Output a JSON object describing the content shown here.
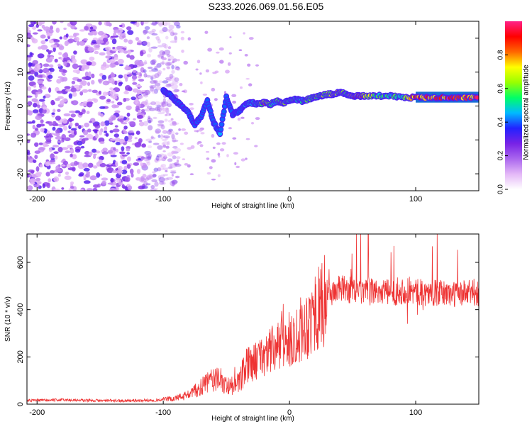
{
  "title": "S233.2026.069.01.56.E05",
  "chart_data": [
    {
      "type": "heatmap",
      "title": "S233.2026.069.01.56.E05",
      "xlabel": "Height of straight line (km)",
      "ylabel": "Frequency (Hz)",
      "xlim": [
        -208,
        150
      ],
      "ylim": [
        -25,
        25
      ],
      "xticks": [
        -200,
        -100,
        0,
        100
      ],
      "yticks": [
        -20,
        -10,
        0,
        10,
        20
      ],
      "colorbar": {
        "label": "Normalized spectral amplitude",
        "range": [
          0,
          1
        ],
        "ticks": [
          0.0,
          0.2,
          0.4,
          0.6,
          0.8
        ],
        "colormap": [
          "#ffffff",
          "#e4b8f7",
          "#aa66ee",
          "#7722e6",
          "#2222ff",
          "#00bbff",
          "#00ff66",
          "#99ff00",
          "#ffff00",
          "#ff6600",
          "#ff0000",
          "#ff2288"
        ]
      },
      "ridge": {
        "x": [
          -100,
          -95,
          -90,
          -85,
          -80,
          -75,
          -70,
          -65,
          -60,
          -55,
          -50,
          -45,
          -40,
          -35,
          -30,
          -25,
          -20,
          -15,
          -10,
          -5,
          0,
          5,
          10,
          15,
          20,
          25,
          30,
          35,
          40,
          45,
          50,
          55,
          60,
          70,
          80,
          90,
          100,
          110,
          120,
          130,
          140,
          150
        ],
        "frequency": [
          4.5,
          3.5,
          1.5,
          0.0,
          -2.0,
          -5.5,
          -3.0,
          1.5,
          -5.0,
          -8.0,
          2.5,
          -2.5,
          -1.5,
          0.5,
          1.0,
          0.5,
          1.0,
          0.5,
          1.5,
          1.0,
          1.5,
          2.0,
          1.5,
          2.0,
          2.5,
          3.0,
          3.5,
          3.5,
          4.0,
          3.5,
          3.0,
          3.0,
          3.0,
          3.0,
          3.0,
          2.5,
          2.5,
          2.5,
          2.5,
          2.5,
          2.5,
          2.5
        ],
        "amplitude": [
          0.3,
          0.35,
          0.3,
          0.3,
          0.35,
          0.4,
          0.3,
          0.35,
          0.4,
          0.45,
          0.3,
          0.35,
          0.3,
          0.45,
          0.5,
          0.55,
          0.85,
          0.6,
          0.55,
          0.7,
          0.6,
          0.6,
          0.55,
          0.6,
          0.65,
          0.7,
          0.75,
          0.8,
          0.75,
          0.6,
          0.85,
          0.95,
          0.85,
          0.6,
          0.55,
          0.6,
          0.95,
          0.95,
          0.95,
          0.95,
          0.95,
          0.95
        ]
      },
      "noise_region_x": [
        -208,
        -100
      ]
    },
    {
      "type": "line",
      "xlabel": "Height of straight line (km)",
      "ylabel": "SNR (10 * v/v)",
      "xlim": [
        -208,
        150
      ],
      "ylim": [
        0,
        720
      ],
      "xticks": [
        -200,
        -100,
        0,
        100
      ],
      "yticks": [
        0,
        200,
        400,
        600
      ],
      "series": [
        {
          "name": "SNR",
          "color": "#ee3333",
          "x": [
            -208,
            -180,
            -150,
            -120,
            -100,
            -90,
            -80,
            -70,
            -60,
            -50,
            -40,
            -35,
            -30,
            -20,
            -10,
            0,
            10,
            20,
            25,
            30,
            40,
            50,
            60,
            70,
            80,
            90,
            100,
            110,
            120,
            130,
            140,
            150
          ],
          "values": [
            15,
            18,
            15,
            15,
            18,
            25,
            40,
            70,
            110,
            80,
            85,
            150,
            170,
            210,
            240,
            270,
            320,
            380,
            420,
            460,
            490,
            480,
            470,
            480,
            470,
            480,
            475,
            470,
            470,
            465,
            470,
            470
          ]
        }
      ]
    }
  ]
}
